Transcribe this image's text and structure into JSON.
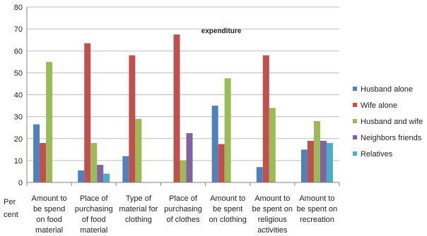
{
  "chart_data": {
    "type": "bar",
    "title": "expenditure",
    "ylabel_lines": [
      "Per",
      "cent"
    ],
    "ylim": [
      0,
      80
    ],
    "yticks": [
      0,
      10,
      20,
      30,
      40,
      50,
      60,
      70,
      80
    ],
    "grid": true,
    "legend_position": "right",
    "categories": [
      [
        "Amount to",
        "be spend",
        "on food",
        "material"
      ],
      [
        "Place of",
        "purchasing",
        "of food",
        "material"
      ],
      [
        "Type of",
        "material for",
        "clothing"
      ],
      [
        "Place of",
        "purchasing",
        "of clothes"
      ],
      [
        "Amount to",
        "be spent",
        "on clothing"
      ],
      [
        "Amount to",
        "be spent on",
        "religious",
        "activities"
      ],
      [
        "Amount to",
        "be spent on",
        "recreation"
      ]
    ],
    "series": [
      {
        "name": "Husband alone",
        "color": "#4F81BD",
        "values": [
          26.5,
          5.5,
          12,
          0,
          35,
          7,
          15
        ]
      },
      {
        "name": "Wife alone",
        "color": "#C0504D",
        "values": [
          18,
          63.5,
          58,
          67.5,
          17.5,
          58,
          19
        ]
      },
      {
        "name": "Husband and wife",
        "color": "#9BBB59",
        "values": [
          55,
          18,
          29,
          10,
          47.5,
          34,
          28
        ]
      },
      {
        "name": "Neighbors friends",
        "color": "#8064A2",
        "values": [
          0,
          8,
          0,
          22.5,
          0,
          0,
          19
        ]
      },
      {
        "name": "Relatives",
        "color": "#4BACC6",
        "values": [
          0,
          4,
          0,
          0,
          0,
          0,
          18
        ]
      }
    ]
  }
}
